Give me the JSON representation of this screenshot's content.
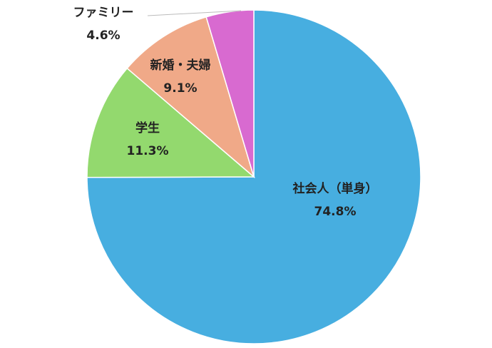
{
  "chart_data": {
    "type": "pie",
    "categories": [
      "社会人（単身）",
      "学生",
      "新婚・夫婦",
      "ファミリー"
    ],
    "values": [
      74.8,
      11.3,
      9.1,
      4.6
    ],
    "value_labels": [
      "74.8%",
      "11.3%",
      "9.1%",
      "4.6%"
    ],
    "colors": [
      "#47aee0",
      "#93d96e",
      "#f0a988",
      "#d86ad0"
    ]
  }
}
